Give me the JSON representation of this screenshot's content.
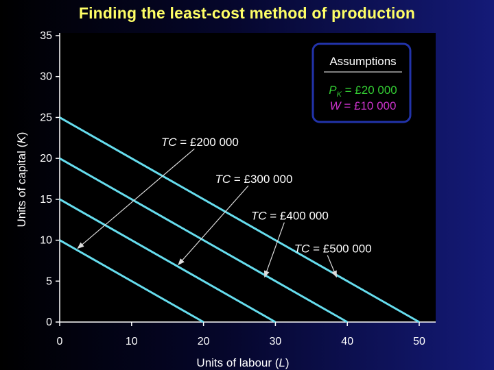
{
  "title": "Finding the least-cost method of production",
  "colors": {
    "title": "#ffff66",
    "isocost_line": "#66ddee",
    "arrow": "#dddddd",
    "assumptions_border": "#2233aa",
    "pk": "#33cc33",
    "w": "#cc33cc"
  },
  "assumptions": {
    "heading": "Assumptions",
    "pk_symbol": "P",
    "pk_subscript": "K",
    "pk_value": " = £20 000",
    "w_symbol": "W",
    "w_value": " = £10 000"
  },
  "chart_data": {
    "type": "line",
    "xlabel_text": "Units of labour (",
    "xlabel_symbol": "L",
    "xlabel_close": ")",
    "ylabel_text": "Units of capital (",
    "ylabel_symbol": "K",
    "ylabel_close": ")",
    "xlim": [
      0,
      50
    ],
    "ylim": [
      0,
      35
    ],
    "xticks": [
      "0",
      "10",
      "20",
      "30",
      "40",
      "50"
    ],
    "yticks": [
      "0",
      "5",
      "10",
      "15",
      "20",
      "25",
      "30",
      "35"
    ],
    "series": [
      {
        "tc_label": "= £200 000",
        "x": [
          0,
          20
        ],
        "y": [
          10,
          0
        ],
        "label_at": [
          19.5,
          21.5
        ],
        "arrow_to": [
          2.5,
          9
        ]
      },
      {
        "tc_label": "= £300 000",
        "x": [
          0,
          30
        ],
        "y": [
          15,
          0
        ],
        "label_at": [
          27,
          17
        ],
        "arrow_to": [
          16.5,
          7
        ]
      },
      {
        "tc_label": "= £400 000",
        "x": [
          0,
          40
        ],
        "y": [
          20,
          0
        ],
        "label_at": [
          32,
          12.5
        ],
        "arrow_to": [
          28.5,
          5.5
        ]
      },
      {
        "tc_label": "= £500 000",
        "x": [
          0,
          50
        ],
        "y": [
          25,
          0
        ],
        "label_at": [
          38,
          8.5
        ],
        "arrow_to": [
          38.5,
          5.5
        ]
      }
    ]
  }
}
